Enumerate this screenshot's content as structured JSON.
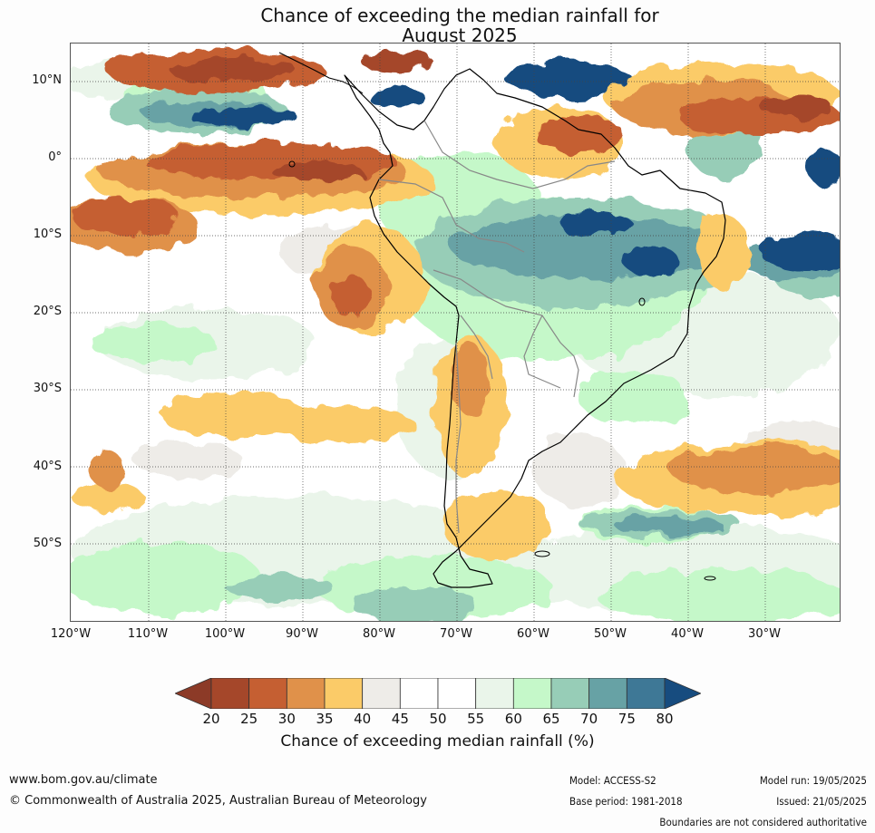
{
  "title_line1": "Chance of exceeding the median rainfall for",
  "title_line2": "August 2025",
  "lat_labels": [
    "10°N",
    "0°",
    "10°S",
    "20°S",
    "30°S",
    "40°S",
    "50°S"
  ],
  "lon_labels": [
    "120°W",
    "110°W",
    "100°W",
    "90°W",
    "80°W",
    "70°W",
    "60°W",
    "50°W",
    "40°W",
    "30°W"
  ],
  "colorbar": {
    "ticks": [
      "20",
      "25",
      "30",
      "35",
      "40",
      "45",
      "50",
      "55",
      "60",
      "65",
      "70",
      "75",
      "80"
    ],
    "colors": [
      "#a5472a",
      "#c55f32",
      "#e0914a",
      "#fbcb68",
      "#eeece8",
      "#ffffff",
      "#ffffff",
      "#eaf5ea",
      "#c5f8c9",
      "#97cdb7",
      "#67a2a5",
      "#3e7896",
      "#174c7f"
    ],
    "under_color": "#8c3a27",
    "over_color": "#174c7f",
    "label": "Chance of exceeding median rainfall (%)"
  },
  "footer": {
    "url": "www.bom.gov.au/climate",
    "copyright": "© Commonwealth of Australia 2025, Australian Bureau of Meteorology",
    "model": "Model: ACCESS-S2",
    "base_period": "Base period: 1981-2018",
    "model_run": "Model run: 19/05/2025",
    "issued": "Issued: 21/05/2025",
    "disclaimer": "Boundaries are not considered authoritative"
  }
}
